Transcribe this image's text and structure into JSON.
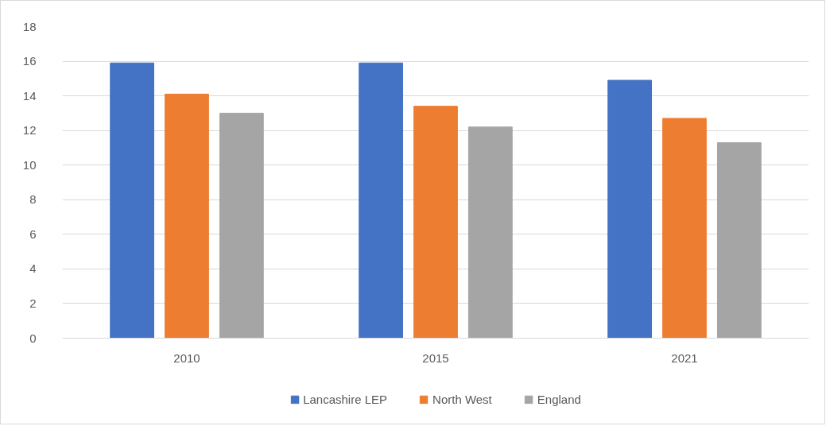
{
  "chart_data": {
    "type": "bar",
    "categories": [
      "2010",
      "2015",
      "2021"
    ],
    "series": [
      {
        "name": "Lancashire LEP",
        "color": "#4472c4",
        "values": [
          15.9,
          15.9,
          14.9
        ]
      },
      {
        "name": "North West",
        "color": "#ed7d31",
        "values": [
          14.1,
          13.4,
          12.7
        ]
      },
      {
        "name": "England",
        "color": "#a5a5a5",
        "values": [
          13.0,
          12.2,
          11.3
        ]
      }
    ],
    "ylim": [
      0,
      18
    ],
    "yticks": [
      0,
      2,
      4,
      6,
      8,
      10,
      12,
      14,
      16,
      18
    ],
    "grid": "y",
    "legend": "bottom"
  }
}
